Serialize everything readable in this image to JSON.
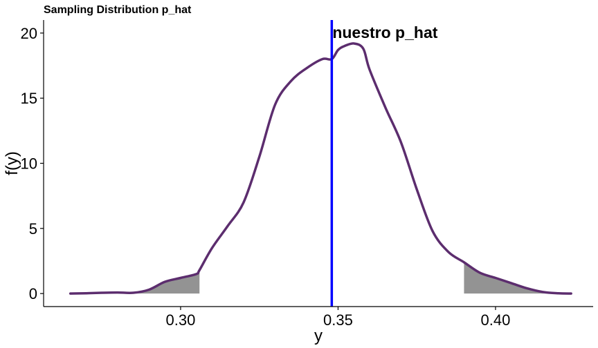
{
  "chart_data": {
    "type": "area",
    "title": "Sampling Distribution p_hat",
    "xlabel": "y",
    "ylabel": "f(y)",
    "xlim": [
      0.2565,
      0.431
    ],
    "ylim": [
      -1,
      21
    ],
    "x_ticks": [
      0.3,
      0.35,
      0.4
    ],
    "x_tick_labels": [
      "0.30",
      "0.35",
      "0.40"
    ],
    "y_ticks": [
      0,
      5,
      10,
      15,
      20
    ],
    "y_tick_labels": [
      "0",
      "5",
      "10",
      "15",
      "20"
    ],
    "grid": false,
    "legend": "none",
    "series": [
      {
        "x": [
          0.265,
          0.27,
          0.275,
          0.28,
          0.285,
          0.29,
          0.295,
          0.3,
          0.305,
          0.306,
          0.31,
          0.315,
          0.32,
          0.325,
          0.33,
          0.335,
          0.34,
          0.345,
          0.348,
          0.35,
          0.352,
          0.355,
          0.358,
          0.36,
          0.365,
          0.37,
          0.375,
          0.38,
          0.385,
          0.39,
          0.395,
          0.4,
          0.405,
          0.41,
          0.415,
          0.42,
          0.424
        ],
        "y": [
          0.0,
          0.02,
          0.06,
          0.08,
          0.06,
          0.3,
          0.9,
          1.2,
          1.5,
          1.8,
          3.5,
          5.2,
          7.0,
          10.5,
          14.5,
          16.3,
          17.3,
          18.0,
          18.0,
          18.7,
          19.0,
          19.2,
          18.8,
          17.2,
          14.3,
          11.6,
          8.0,
          4.8,
          3.2,
          2.4,
          1.6,
          1.2,
          0.8,
          0.4,
          0.12,
          0.02,
          0.0
        ]
      }
    ],
    "shaded_regions": [
      {
        "from": 0.265,
        "to": 0.306
      },
      {
        "from": 0.39,
        "to": 0.424
      }
    ],
    "vline": {
      "x": 0.348,
      "label": "nuestro p_hat"
    },
    "colors": {
      "curve": "#5c2d6e",
      "vline": "#0000ff",
      "shade": "#939393",
      "axis": "#000000"
    }
  }
}
